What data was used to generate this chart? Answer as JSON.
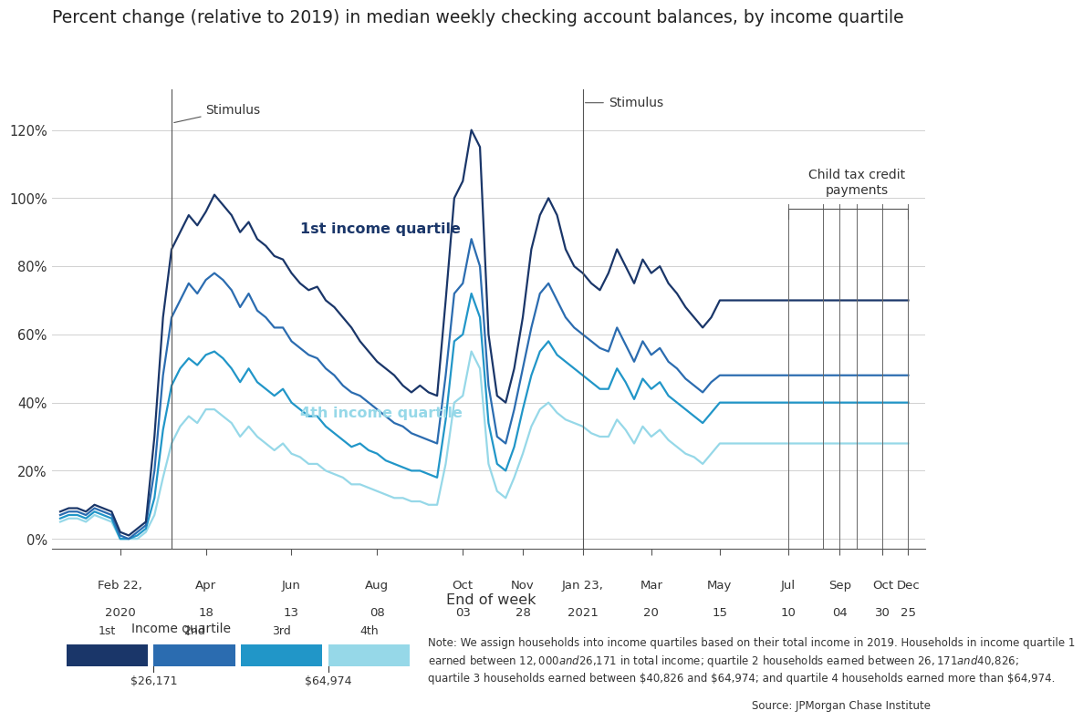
{
  "title": "Percent change (relative to 2019) in median weekly checking account balances, by income quartile",
  "xlabel": "End of week",
  "colors": {
    "q1": "#1a3669",
    "q2": "#2b6cb0",
    "q3": "#2196c8",
    "q4": "#96d8e8"
  },
  "ytick_labels": [
    "0%",
    "20%",
    "40%",
    "60%",
    "80%",
    "100%",
    "120%"
  ],
  "yticks": [
    0.0,
    0.2,
    0.4,
    0.6,
    0.8,
    1.0,
    1.2
  ],
  "ylim": [
    -0.03,
    1.32
  ],
  "tick_labels_top": [
    "Feb 22,",
    "Apr",
    "Jun",
    "Aug",
    "Oct",
    "Nov",
    "Jan 23,",
    "Mar",
    "May",
    "Jul",
    "Sep",
    "Oct",
    "Dec"
  ],
  "tick_labels_bot": [
    "2020",
    "18",
    "13",
    "08",
    "03",
    "28",
    "2021",
    "20",
    "15",
    "10",
    "04",
    "30",
    "25"
  ],
  "note": "Note: We assign households into income quartiles based on their total income in 2019. Households in income quartile 1\nearned between $12,000 and $26,171 in total income; quartile 2 households earned between $26,171 and $40,826;\nquartile 3 households earned between $40,826 and $64,974; and quartile 4 households earned more than $64,974.",
  "source": "Source: JPMorgan Chase Institute",
  "legend_labels": [
    "1st",
    "2nd",
    "3rd",
    "4th"
  ],
  "income_labels": [
    "$26,171",
    "$64,974"
  ],
  "background_color": "#ffffff"
}
